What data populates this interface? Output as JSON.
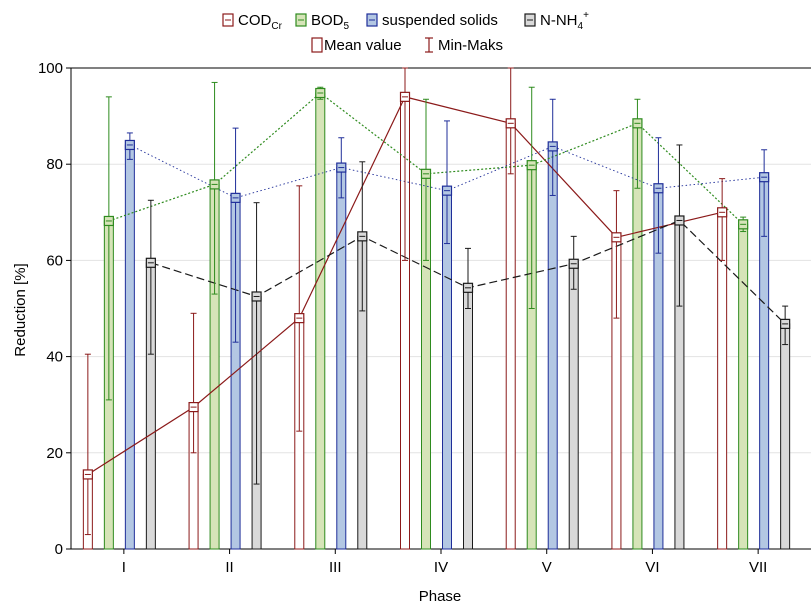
{
  "chart_data": {
    "type": "bar",
    "xlabel": "Phase",
    "ylabel": "Reduction [%]",
    "ylim": [
      0,
      100
    ],
    "yticks": [
      0,
      20,
      40,
      60,
      80,
      100
    ],
    "grid": true,
    "legend_position": "top-center",
    "categories": [
      "I",
      "II",
      "III",
      "IV",
      "V",
      "VI",
      "VII"
    ],
    "legend": {
      "cod_main": "COD",
      "cod_sub": "Cr",
      "bod_main": "BOD",
      "bod_sub": "5",
      "ss": "suspended solids",
      "nh4_main": "N-NH",
      "nh4_sub": "4",
      "nh4_sup": "+",
      "mean_label": "Mean value",
      "minmax_label": "Min-Maks"
    },
    "series": [
      {
        "key": "cod",
        "name": "CODCr",
        "color": "#8B1A1A",
        "fill": "#ffffff",
        "line": "solid",
        "values": [
          15.5,
          29.5,
          48,
          94,
          88.5,
          64.8,
          70
        ],
        "min": [
          3,
          20,
          24.5,
          60,
          78,
          48,
          60
        ],
        "max": [
          40.5,
          49,
          75.5,
          100,
          100,
          74.5,
          77
        ]
      },
      {
        "key": "bod",
        "name": "BOD5",
        "color": "#2E8B1E",
        "fill": "#d6e4b8",
        "line": "dotted",
        "values": [
          68.2,
          75.8,
          94.8,
          78,
          79.8,
          88.5,
          67.5
        ],
        "min": [
          31,
          53,
          93.5,
          60,
          50,
          75,
          66
        ],
        "max": [
          94,
          97,
          96,
          93.5,
          96,
          93.5,
          69
        ]
      },
      {
        "key": "ss",
        "name": "suspended solids",
        "color": "#1F2E99",
        "fill": "#b3c7e3",
        "line": "dotted-light",
        "values": [
          84,
          73,
          79.3,
          74.5,
          83.7,
          75,
          77.3
        ],
        "min": [
          81,
          43,
          73,
          63.5,
          73.5,
          61.5,
          65
        ],
        "max": [
          86.5,
          87.5,
          85.5,
          89,
          93.5,
          85.5,
          83
        ]
      },
      {
        "key": "nh4",
        "name": "N-NH4+",
        "color": "#1a1a1a",
        "fill": "#d9d9d9",
        "line": "dashed",
        "values": [
          59.5,
          52.5,
          65,
          54.3,
          59.3,
          68.3,
          46.8
        ],
        "min": [
          40.5,
          13.5,
          49.5,
          50,
          54,
          50.5,
          42.5
        ],
        "max": [
          72.5,
          72,
          80.5,
          62.5,
          65,
          84,
          50.5
        ]
      }
    ]
  }
}
